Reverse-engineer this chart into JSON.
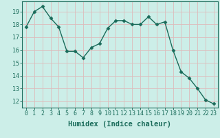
{
  "x": [
    0,
    1,
    2,
    3,
    4,
    5,
    6,
    7,
    8,
    9,
    10,
    11,
    12,
    13,
    14,
    15,
    16,
    17,
    18,
    19,
    20,
    21,
    22,
    23
  ],
  "y": [
    17.8,
    19.0,
    19.4,
    18.5,
    17.8,
    15.9,
    15.9,
    15.4,
    16.2,
    16.5,
    17.7,
    18.3,
    18.3,
    18.0,
    18.0,
    18.6,
    18.0,
    18.2,
    16.0,
    14.3,
    13.8,
    13.0,
    12.1,
    11.8
  ],
  "line_color": "#1a6b5a",
  "marker": "D",
  "marker_size": 2.5,
  "bg_color": "#cceee8",
  "grid_color": "#ddbbbb",
  "xlabel": "Humidex (Indice chaleur)",
  "ylim": [
    11.5,
    19.8
  ],
  "xlim": [
    -0.5,
    23.5
  ],
  "yticks": [
    12,
    13,
    14,
    15,
    16,
    17,
    18,
    19
  ],
  "xticks": [
    0,
    1,
    2,
    3,
    4,
    5,
    6,
    7,
    8,
    9,
    10,
    11,
    12,
    13,
    14,
    15,
    16,
    17,
    18,
    19,
    20,
    21,
    22,
    23
  ],
  "tick_label_fontsize": 6,
  "xlabel_fontsize": 7.5
}
